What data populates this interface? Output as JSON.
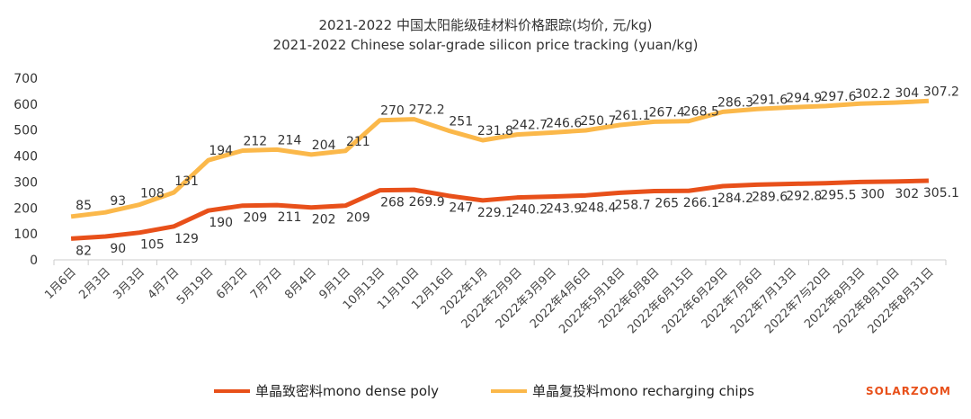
{
  "chart_data": {
    "type": "line",
    "stacked": true,
    "title": "2021-2022 中国太阳能级硅材料价格跟踪(均价,  元/kg)",
    "subtitle": "2021-2022 Chinese solar-grade silicon price tracking (yuan/kg)",
    "ylim": [
      0,
      700
    ],
    "yticks": [
      0,
      100,
      200,
      300,
      400,
      500,
      600,
      700
    ],
    "categories": [
      "1月6日",
      "2月3日",
      "3月3日",
      "4月7日",
      "5月19日",
      "6月2日",
      "7月7日",
      "8月4日",
      "9月1日",
      "10月13日",
      "11月10日",
      "12月16日",
      "2022年1月",
      "2022年2月9日",
      "2022年3月9日",
      "2022年4月6日",
      "2022年5月18日",
      "2022年6月8日",
      "2022年6月15日",
      "2022年6月29日",
      "2022年7月6日",
      "2022年7月13日",
      "2022年7与20日",
      "2022年8月3日",
      "2022年8月10日",
      "2022年8月31日"
    ],
    "series": [
      {
        "name": "单晶致密料mono dense poly",
        "color": "#e8501a",
        "values": [
          82,
          90,
          105,
          129,
          190,
          209,
          211,
          202,
          209,
          268,
          269.9,
          247,
          229.1,
          240.2,
          243.9,
          248.4,
          258.7,
          265,
          266.1,
          284.2,
          289.6,
          292.8,
          295.5,
          300,
          302,
          305.1
        ]
      },
      {
        "name": "单晶复投料mono recharging chips",
        "color": "#fbb84a",
        "values": [
          85,
          93,
          108,
          131,
          194,
          212,
          214,
          204,
          211,
          270,
          272.2,
          251,
          231.8,
          242.7,
          246.6,
          250.7,
          261.1,
          267.4,
          268.5,
          286.3,
          291.6,
          294.9,
          297.6,
          302.2,
          304,
          307.2
        ]
      }
    ]
  },
  "brand": "SOLARZOOM"
}
